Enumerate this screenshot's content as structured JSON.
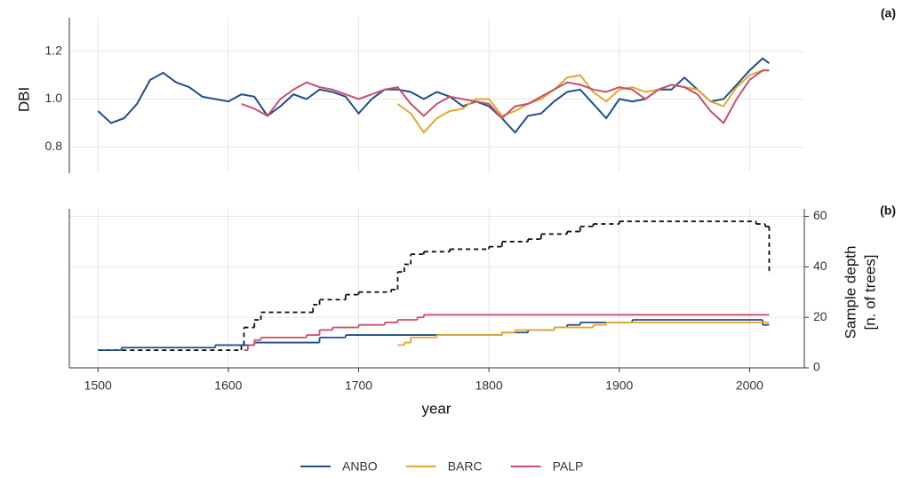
{
  "chart_data": [
    {
      "type": "line",
      "panel_label": "(a)",
      "y_label": "DBI",
      "xlim": [
        1478,
        2042
      ],
      "ylim": [
        0.69,
        1.34
      ],
      "yticks": [
        0.8,
        {
          "value": 1,
          "label": "1.0"
        },
        1.2
      ],
      "grid": true,
      "series": [
        {
          "name": "ANBO",
          "color": "#1f4e8c",
          "x": [
            1500,
            1510,
            1520,
            1530,
            1540,
            1550,
            1560,
            1570,
            1580,
            1590,
            1600,
            1610,
            1620,
            1630,
            1640,
            1650,
            1660,
            1670,
            1680,
            1690,
            1700,
            1710,
            1720,
            1730,
            1740,
            1750,
            1760,
            1770,
            1780,
            1790,
            1800,
            1810,
            1820,
            1830,
            1840,
            1850,
            1860,
            1870,
            1880,
            1890,
            1900,
            1910,
            1920,
            1930,
            1940,
            1950,
            1960,
            1970,
            1980,
            1990,
            2000,
            2010,
            2015
          ],
          "values": [
            0.95,
            0.9,
            0.92,
            0.98,
            1.08,
            1.11,
            1.07,
            1.05,
            1.01,
            1.0,
            0.99,
            1.02,
            1.01,
            0.93,
            0.97,
            1.02,
            1.0,
            1.04,
            1.03,
            1.01,
            0.94,
            1.0,
            1.04,
            1.04,
            1.03,
            1.0,
            1.03,
            1.01,
            0.97,
            0.99,
            0.97,
            0.92,
            0.86,
            0.93,
            0.94,
            0.99,
            1.03,
            1.04,
            0.98,
            0.92,
            1.0,
            0.99,
            1.0,
            1.04,
            1.04,
            1.09,
            1.04,
            0.99,
            1.0,
            1.06,
            1.12,
            1.17,
            1.15
          ]
        },
        {
          "name": "BARC",
          "color": "#e0a82e",
          "x": [
            1730,
            1740,
            1750,
            1760,
            1770,
            1780,
            1790,
            1800,
            1810,
            1820,
            1830,
            1840,
            1850,
            1860,
            1870,
            1880,
            1890,
            1900,
            1910,
            1920,
            1930,
            1940,
            1950,
            1960,
            1970,
            1980,
            1990,
            2000,
            2010,
            2015
          ],
          "values": [
            0.98,
            0.94,
            0.86,
            0.92,
            0.95,
            0.96,
            1.0,
            1.0,
            0.93,
            0.95,
            0.98,
            1.0,
            1.04,
            1.09,
            1.1,
            1.03,
            0.99,
            1.04,
            1.05,
            1.03,
            1.04,
            1.06,
            1.05,
            1.04,
            0.99,
            0.97,
            1.05,
            1.1,
            1.12,
            1.12
          ]
        },
        {
          "name": "PALP",
          "color": "#c8506a",
          "x": [
            1610,
            1620,
            1630,
            1640,
            1650,
            1660,
            1670,
            1680,
            1690,
            1700,
            1710,
            1720,
            1730,
            1740,
            1750,
            1760,
            1770,
            1780,
            1790,
            1800,
            1810,
            1820,
            1830,
            1840,
            1850,
            1860,
            1870,
            1880,
            1890,
            1900,
            1910,
            1920,
            1930,
            1940,
            1950,
            1960,
            1970,
            1980,
            1990,
            2000,
            2010,
            2015
          ],
          "values": [
            0.98,
            0.96,
            0.93,
            1.0,
            1.04,
            1.07,
            1.05,
            1.04,
            1.02,
            1.0,
            1.02,
            1.04,
            1.05,
            0.98,
            0.93,
            0.98,
            1.01,
            1.0,
            0.99,
            0.98,
            0.92,
            0.97,
            0.98,
            1.01,
            1.04,
            1.07,
            1.06,
            1.04,
            1.03,
            1.05,
            1.04,
            1.0,
            1.04,
            1.06,
            1.05,
            1.02,
            0.95,
            0.9,
            1.0,
            1.08,
            1.12,
            1.12
          ]
        }
      ]
    },
    {
      "type": "step",
      "panel_label": "(b)",
      "x_label": "year",
      "y2_label": [
        "Sample depth",
        "[n. of trees]"
      ],
      "xlim": [
        1478,
        2042
      ],
      "xticks": [
        1500,
        1600,
        1700,
        1800,
        1900,
        2000
      ],
      "y2lim": [
        0,
        63
      ],
      "y2ticks": [
        0,
        20,
        40,
        60
      ],
      "grid": true,
      "series": [
        {
          "color": "#111111",
          "linestyle": "dashed",
          "axis": "y2",
          "x": [
            1500,
            1610,
            1612,
            1620,
            1625,
            1665,
            1670,
            1690,
            1700,
            1725,
            1730,
            1735,
            1740,
            1750,
            1770,
            1800,
            1810,
            1830,
            1840,
            1860,
            1870,
            1880,
            1900,
            2005,
            2012,
            2015
          ],
          "values": [
            7,
            9,
            16,
            19,
            22,
            25,
            27,
            29,
            30,
            31,
            38,
            41,
            45,
            46,
            47,
            48,
            50,
            51,
            53,
            54,
            56,
            57,
            58,
            57,
            56,
            38
          ]
        },
        {
          "color": "#1f4e8c",
          "axis": "y2",
          "x": [
            1500,
            1518,
            1590,
            1620,
            1670,
            1690,
            1810,
            1830,
            1850,
            1860,
            1870,
            1910,
            2010,
            2015
          ],
          "values": [
            7,
            8,
            9,
            10,
            12,
            13,
            14,
            15,
            16,
            17,
            18,
            19,
            17,
            17
          ]
        },
        {
          "color": "#e0a82e",
          "axis": "y2",
          "x": [
            1730,
            1735,
            1740,
            1760,
            1810,
            1820,
            1850,
            1880,
            1890,
            2015
          ],
          "values": [
            9,
            10,
            12,
            13,
            14,
            15,
            16,
            17,
            18,
            18
          ]
        },
        {
          "color": "#c8506a",
          "axis": "y2",
          "x": [
            1612,
            1615,
            1620,
            1625,
            1660,
            1670,
            1680,
            1700,
            1720,
            1730,
            1745,
            1750,
            2015
          ],
          "values": [
            7,
            9,
            11,
            12,
            13,
            15,
            16,
            17,
            18,
            19,
            20,
            21,
            21
          ]
        }
      ]
    }
  ]
}
